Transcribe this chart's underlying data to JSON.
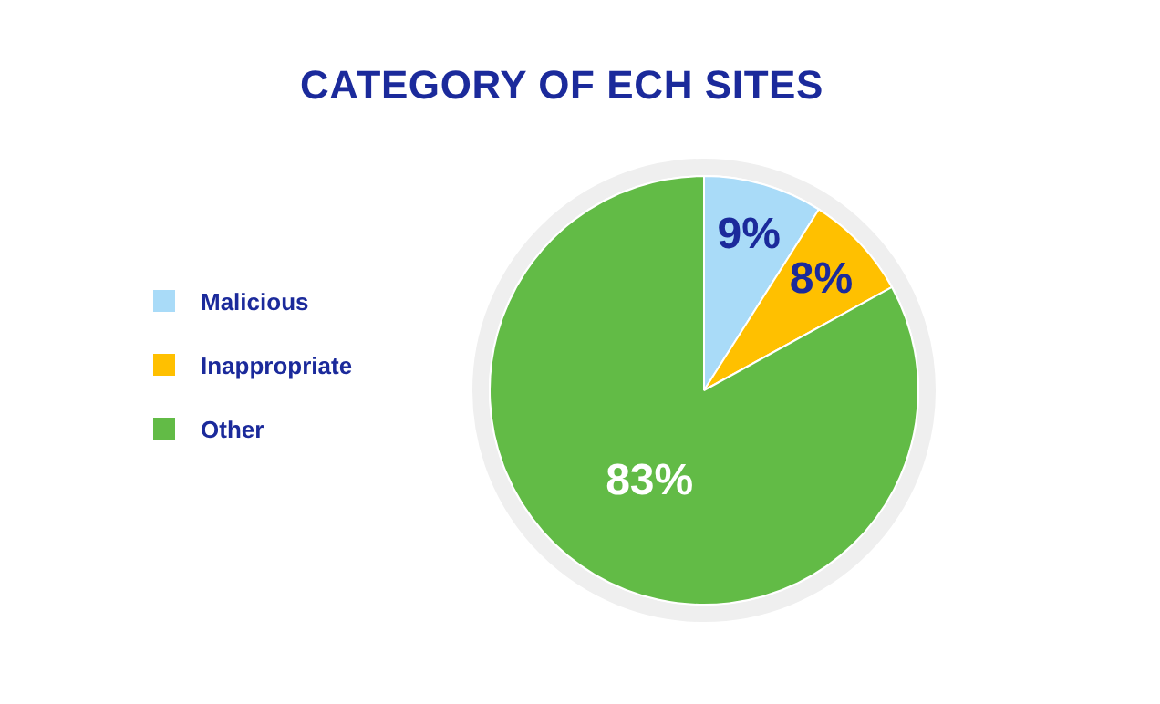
{
  "chart_data": {
    "type": "pie",
    "title": "CATEGORY OF ECH SITES",
    "categories": [
      "Malicious",
      "Inappropriate",
      "Other"
    ],
    "values": [
      9,
      8,
      83
    ],
    "colors": [
      "#a9dbf8",
      "#ffc000",
      "#62bb46"
    ],
    "value_labels": [
      "9%",
      "8%",
      "83%"
    ],
    "legend": "left"
  }
}
